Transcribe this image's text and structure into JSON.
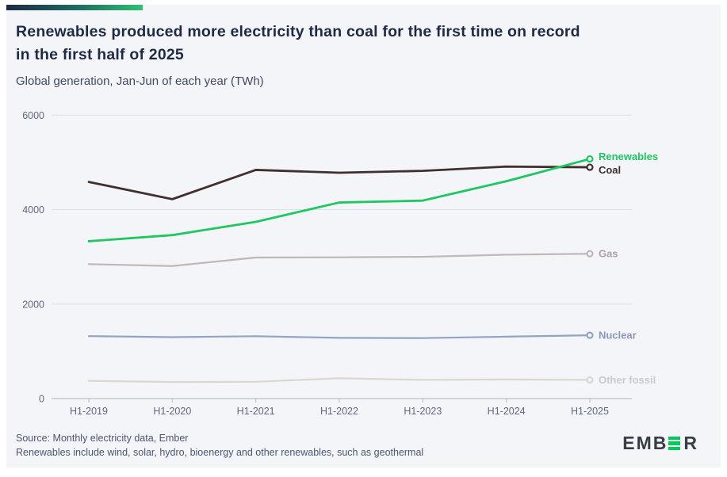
{
  "theme": {
    "background": "#f4f5f9",
    "title_color": "#1f2a44",
    "accent_gradient": [
      "#202849",
      "#2fc172"
    ],
    "logo_green": "#00ca57",
    "axis_label_color": "#5f6880",
    "grid_color": "#dcdee8",
    "footer_text_color": "#4c5572"
  },
  "header": {
    "title_line1": "Renewables produced more electricity than coal for the first time on record",
    "title_line2": "in the first half of 2025"
  },
  "chart_data": {
    "type": "line",
    "title": "Renewables produced more electricity than coal for the first time on record in the first half of 2025",
    "subtitle": "Global generation, Jan-Jun of each year (TWh)",
    "unit": "TWh",
    "categories": [
      "H1-2019",
      "H1-2020",
      "H1-2021",
      "H1-2022",
      "H1-2023",
      "H1-2024",
      "H1-2025"
    ],
    "yticks": [
      0,
      2000,
      4000,
      6000
    ],
    "ylim": [
      0,
      6000
    ],
    "grid": "horizontal",
    "legend_position": "end-of-line-labels",
    "series": [
      {
        "name": "Renewables",
        "color": "#1fc760",
        "label_color": "#1fc760",
        "values": [
          3330,
          3460,
          3740,
          4150,
          4190,
          4600,
          5072
        ]
      },
      {
        "name": "Coal",
        "color": "#40302c",
        "label_color": "#3a2e2b",
        "values": [
          4585,
          4220,
          4840,
          4780,
          4820,
          4910,
          4896
        ]
      },
      {
        "name": "Gas",
        "color": "#c1b7b7",
        "label_color": "#aaa2a4",
        "values": [
          2845,
          2805,
          2985,
          2990,
          3000,
          3045,
          3065
        ]
      },
      {
        "name": "Nuclear",
        "color": "#94a2c6",
        "label_color": "#8d97b8",
        "values": [
          1322,
          1300,
          1320,
          1285,
          1280,
          1310,
          1340
        ]
      },
      {
        "name": "Other fossil",
        "color": "#d9d7cf",
        "label_color": "#c9c9d3",
        "values": [
          375,
          350,
          355,
          430,
          395,
          405,
          395
        ]
      }
    ]
  },
  "footer": {
    "source": "Source: Monthly electricity data, Ember",
    "note": "Renewables include wind, solar, hydro, bioenergy and other renewables, such as geothermal"
  },
  "logo": {
    "text_before_green": "EMB",
    "green_letter": "E",
    "text_after_green": "R"
  }
}
